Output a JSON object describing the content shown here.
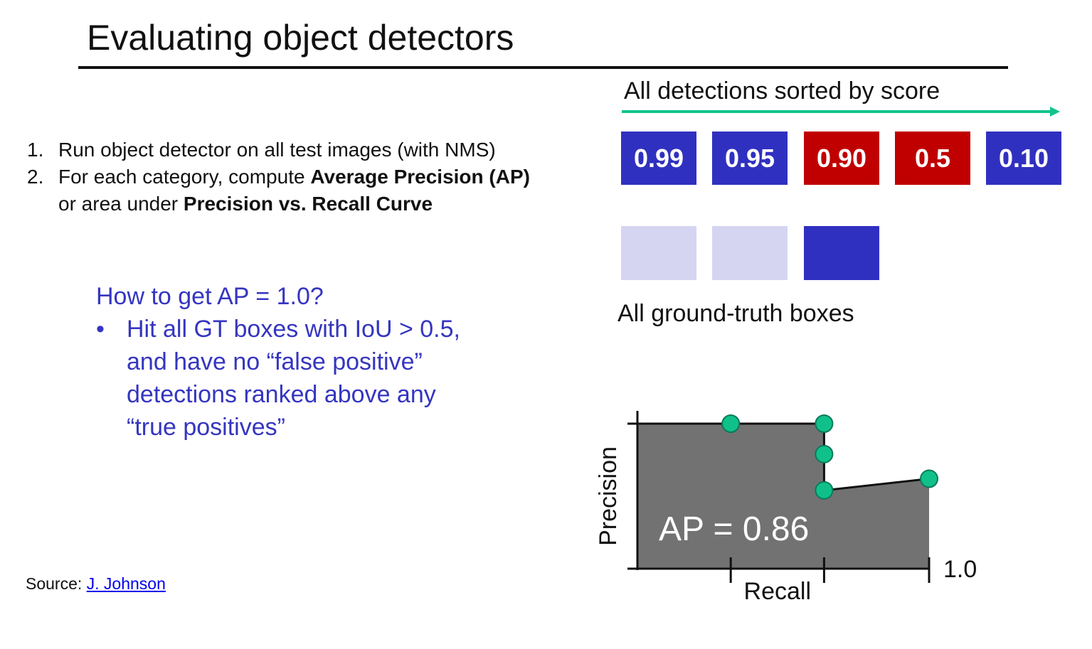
{
  "slide": {
    "title": "Evaluating object detectors",
    "steps": [
      {
        "num": "1.",
        "line1_plain": "Run object detector on all test images (with NMS)"
      },
      {
        "num": "2.",
        "line1_plain": "For each category, compute ",
        "line1_bold": "Average Precision (AP)",
        "line2_plain": "or area under ",
        "line2_bold": "Precision vs. Recall Curve"
      }
    ],
    "question": {
      "heading": "How to get AP = 1.0?",
      "bullet": "•",
      "lines": [
        "Hit all GT boxes with IoU > 0.5,",
        "and have no “false positive”",
        "detections ranked above any",
        "“true positives”"
      ]
    },
    "source": {
      "label": "Source: ",
      "link_text": "J. Johnson"
    }
  },
  "detections": {
    "label": "All detections sorted by score",
    "items": [
      {
        "score": "0.99",
        "status": "true-positive"
      },
      {
        "score": "0.95",
        "status": "true-positive"
      },
      {
        "score": "0.90",
        "status": "false-positive"
      },
      {
        "score": "0.5",
        "status": "false-positive"
      },
      {
        "score": "0.10",
        "status": "true-positive"
      }
    ]
  },
  "ground_truth": {
    "label": "All ground-truth boxes",
    "boxes": [
      {
        "state": "matched"
      },
      {
        "state": "matched"
      },
      {
        "state": "unmatched"
      }
    ]
  },
  "colors": {
    "true_positive": "#3030c0",
    "false_positive": "#c00000",
    "gt_matched": "#d5d5f2",
    "gt_unmatched": "#3030c0",
    "question_text": "#3535c0",
    "arrow": "#12c48c",
    "curve_fill": "#727272",
    "point": "#10c08a"
  },
  "chart_data": {
    "type": "area",
    "title": "",
    "xlabel": "Recall",
    "ylabel": "Precision",
    "annotation": "AP = 0.86",
    "x_tick_label": "1.0",
    "xlim": [
      0,
      1.0
    ],
    "ylim": [
      0,
      1.0
    ],
    "x_ticks": [
      0.32,
      0.64,
      1.0
    ],
    "curve": [
      {
        "x": 0,
        "y": 1.0
      },
      {
        "x": 0.32,
        "y": 1.0
      },
      {
        "x": 0.64,
        "y": 1.0
      },
      {
        "x": 0.64,
        "y": 0.79
      },
      {
        "x": 0.64,
        "y": 0.54
      },
      {
        "x": 1.0,
        "y": 0.62
      }
    ],
    "points": [
      {
        "x": 0.32,
        "y": 1.0
      },
      {
        "x": 0.64,
        "y": 1.0
      },
      {
        "x": 0.64,
        "y": 0.79
      },
      {
        "x": 0.64,
        "y": 0.54
      },
      {
        "x": 1.0,
        "y": 0.62
      }
    ]
  }
}
